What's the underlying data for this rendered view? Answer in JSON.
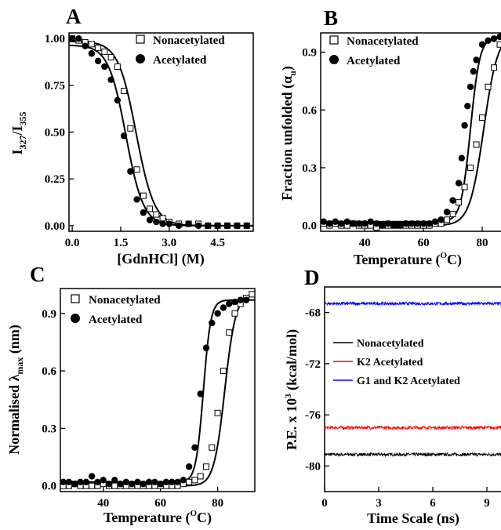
{
  "chart_data": [
    {
      "panel": "A",
      "type": "scatter",
      "xlabel": "[GdnHCl] (M)",
      "ylabel": {
        "main": "I",
        "sub1": "327",
        "slash": "/I",
        "sub2": "355"
      },
      "xlim": [
        -0.1,
        5.6
      ],
      "ylim": [
        -0.03,
        1.03
      ],
      "xticks": [
        "0.0",
        "1.5",
        "3.0",
        "4.5"
      ],
      "yticks": [
        "0.00",
        "0.25",
        "0.50",
        "0.75",
        "1.00"
      ],
      "legend_position": "top-right",
      "series": [
        {
          "name": "Nonacetylated",
          "marker": "open-square",
          "x": [
            0.0,
            0.2,
            0.4,
            0.6,
            0.8,
            1.0,
            1.2,
            1.4,
            1.6,
            1.8,
            2.0,
            2.2,
            2.4,
            2.6,
            2.8,
            3.0,
            3.3,
            3.6,
            3.9,
            4.2,
            4.5,
            4.8,
            5.1,
            5.4
          ],
          "y": [
            1.0,
            0.99,
            0.98,
            0.97,
            0.95,
            0.93,
            0.9,
            0.85,
            0.72,
            0.52,
            0.3,
            0.16,
            0.09,
            0.06,
            0.04,
            0.02,
            0.01,
            0.01,
            0.01,
            0.0,
            0.0,
            0.0,
            0.0,
            0.0
          ],
          "fit": {
            "model": "sigmoid",
            "top": 0.985,
            "bottom": 0.0,
            "mid": 1.98,
            "width": 0.28
          }
        },
        {
          "name": "Acetylated",
          "marker": "filled-circle",
          "x": [
            0.0,
            0.2,
            0.4,
            0.6,
            0.8,
            1.0,
            1.2,
            1.4,
            1.6,
            1.8,
            2.0,
            2.2,
            2.4,
            2.6,
            2.8,
            3.0,
            3.3,
            3.6,
            3.9,
            4.2,
            4.5,
            4.8,
            5.1,
            5.4
          ],
          "y": [
            1.0,
            1.0,
            0.96,
            0.92,
            0.88,
            0.85,
            0.78,
            0.67,
            0.48,
            0.29,
            0.14,
            0.07,
            0.03,
            0.02,
            0.01,
            0.01,
            0.0,
            0.01,
            0.0,
            0.0,
            0.0,
            0.0,
            0.0,
            0.0
          ],
          "fit": {
            "model": "sigmoid",
            "top": 0.965,
            "bottom": 0.0,
            "mid": 1.66,
            "width": 0.27
          }
        }
      ]
    },
    {
      "panel": "B",
      "type": "scatter",
      "xlabel": "Temperature (°C)",
      "ylabel": "Fraction unfolded (αu)",
      "xlim": [
        25,
        88
      ],
      "ylim": [
        -0.03,
        1.0
      ],
      "xticks": [
        "40",
        "60",
        "80"
      ],
      "yticks": [
        "0.0",
        "0.3",
        "0.6",
        "0.9"
      ],
      "legend_position": "top-left",
      "series": [
        {
          "name": "Nonacetylated",
          "marker": "open-square",
          "x": [
            26,
            28,
            30,
            32,
            34,
            36,
            38,
            40,
            42,
            44,
            46,
            48,
            50,
            52,
            54,
            56,
            58,
            60,
            62,
            64,
            66,
            68,
            70,
            72,
            74,
            76,
            78,
            80,
            82,
            84,
            86,
            88
          ],
          "y": [
            0.01,
            0.0,
            0.01,
            0.0,
            0.0,
            0.01,
            0.0,
            0.0,
            0.0,
            -0.01,
            0.0,
            0.0,
            0.0,
            0.0,
            0.0,
            0.0,
            0.0,
            0.0,
            0.0,
            0.01,
            0.01,
            0.03,
            0.06,
            0.12,
            0.2,
            0.3,
            0.42,
            0.56,
            0.72,
            0.82,
            0.94,
            0.99
          ],
          "fit": {
            "model": "sigmoid",
            "top": 1.0,
            "bottom": 0.0,
            "mid": 80.5,
            "width": 2.4
          }
        },
        {
          "name": "Acetylated",
          "marker": "filled-circle",
          "x": [
            26,
            28,
            30,
            32,
            34,
            36,
            38,
            40,
            42,
            44,
            46,
            48,
            50,
            52,
            54,
            56,
            58,
            60,
            62,
            64,
            66,
            68,
            70,
            72,
            73,
            74,
            75,
            76,
            77,
            78,
            80,
            82,
            84,
            86,
            88
          ],
          "y": [
            0.02,
            0.01,
            0.02,
            0.01,
            0.02,
            0.01,
            0.01,
            0.01,
            0.02,
            0.01,
            0.0,
            0.01,
            0.0,
            0.0,
            0.01,
            0.01,
            0.01,
            0.01,
            0.01,
            0.02,
            0.03,
            0.07,
            0.13,
            0.22,
            0.35,
            0.52,
            0.62,
            0.72,
            0.8,
            0.86,
            0.94,
            0.96,
            0.97,
            0.98,
            0.98
          ],
          "fit": {
            "model": "sigmoid",
            "top": 0.98,
            "bottom": 0.02,
            "mid": 76.0,
            "width": 1.6
          }
        }
      ]
    },
    {
      "panel": "C",
      "type": "scatter",
      "xlabel": "Temperature (°C)",
      "ylabel": "Normalised λmax (nm)",
      "xlim": [
        25,
        93
      ],
      "ylim": [
        -0.03,
        1.03
      ],
      "xticks": [
        "40",
        "60",
        "80"
      ],
      "yticks": [
        "0.0",
        "0.3",
        "0.6",
        "0.9"
      ],
      "legend_position": "top-left",
      "series": [
        {
          "name": "Nonacetylated",
          "marker": "open-square",
          "x": [
            26,
            28,
            30,
            32,
            34,
            36,
            38,
            40,
            42,
            44,
            46,
            48,
            50,
            52,
            54,
            56,
            58,
            60,
            62,
            64,
            66,
            68,
            70,
            72,
            74,
            76,
            78,
            80,
            82,
            84,
            86,
            88,
            90,
            92
          ],
          "y": [
            0.0,
            0.0,
            0.01,
            0.0,
            0.0,
            0.0,
            0.0,
            0.01,
            0.0,
            0.0,
            0.0,
            0.0,
            0.0,
            0.0,
            0.0,
            0.0,
            0.0,
            0.0,
            0.0,
            0.0,
            0.0,
            0.01,
            0.02,
            0.03,
            0.05,
            0.1,
            0.2,
            0.38,
            0.6,
            0.8,
            0.9,
            0.95,
            0.98,
            1.0
          ],
          "fit": {
            "model": "sigmoid",
            "top": 1.0,
            "bottom": 0.0,
            "mid": 82.5,
            "width": 1.9
          }
        },
        {
          "name": "Acetylated",
          "marker": "filled-circle",
          "x": [
            26,
            28,
            30,
            32,
            34,
            36,
            38,
            40,
            42,
            44,
            46,
            48,
            50,
            52,
            54,
            56,
            58,
            60,
            62,
            64,
            66,
            68,
            70,
            72,
            74,
            76,
            78,
            80,
            82,
            84,
            86,
            88,
            90
          ],
          "y": [
            0.02,
            0.02,
            0.01,
            0.02,
            0.02,
            0.05,
            0.02,
            0.03,
            0.01,
            0.03,
            0.01,
            0.02,
            0.01,
            0.02,
            0.01,
            0.02,
            0.02,
            0.01,
            0.02,
            0.02,
            0.02,
            0.03,
            0.1,
            0.2,
            0.48,
            0.72,
            0.85,
            0.9,
            0.93,
            0.95,
            0.96,
            0.97,
            0.97
          ],
          "fit": {
            "model": "sigmoid",
            "top": 0.97,
            "bottom": 0.02,
            "mid": 75.0,
            "width": 1.3
          }
        }
      ]
    },
    {
      "panel": "D",
      "type": "line",
      "xlabel": "Time Scale (ns)",
      "ylabel": "P.E. x 10³ (kcal/mol)",
      "xlim": [
        0,
        10
      ],
      "ylim": [
        -82,
        -66
      ],
      "xticks": [
        "0",
        "3",
        "6",
        "9"
      ],
      "yticks": [
        "-80",
        "-76",
        "-72",
        "-68"
      ],
      "legend_position": "center-right",
      "series": [
        {
          "name": "Nonacetylated",
          "color": "#000000",
          "mean": -79.1,
          "noise": 0.12
        },
        {
          "name": "K2 Acetylated",
          "color": "#ff0000",
          "mean": -77.0,
          "noise": 0.12
        },
        {
          "name": "G1 and K2 Acetylated",
          "color": "#0000ff",
          "mean": -67.3,
          "noise": 0.12
        }
      ]
    }
  ]
}
